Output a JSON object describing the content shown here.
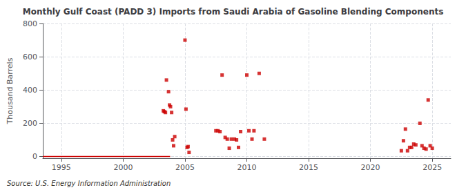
{
  "chart_data": {
    "type": "scatter",
    "title": "Monthly Gulf Coast (PADD 3) Imports from Saudi Arabia of Gasoline Blending Components",
    "ylabel": "Thousand Barrels",
    "source": "Source: U.S. Energy Information Administration",
    "color": "#cc0000",
    "grid": true,
    "xlim": [
      1993.5,
      2026.5
    ],
    "ylim": [
      -10,
      800
    ],
    "xticks": [
      1995,
      2000,
      2005,
      2010,
      2015,
      2020,
      2025
    ],
    "yticks": [
      0,
      200,
      400,
      600,
      800
    ],
    "series": [
      {
        "type": "line",
        "line_style": "solid",
        "x": [
          1993.5,
          2003.8
        ],
        "values": [
          0,
          0
        ]
      },
      {
        "type": "scatter",
        "marker": "square",
        "x": [
          2003.25,
          2003.33,
          2003.42,
          2003.5,
          2003.67,
          2003.75,
          2003.83,
          2003.92,
          2004.0,
          2004.08,
          2004.17,
          2005.0,
          2005.08,
          2005.17,
          2005.25,
          2005.33,
          2007.5,
          2007.67,
          2007.83,
          2008.0,
          2008.25,
          2008.42,
          2008.58,
          2008.75,
          2009.0,
          2009.17,
          2009.33,
          2009.5,
          2010.0,
          2010.17,
          2010.42,
          2010.58,
          2011.0,
          2011.42,
          2022.5,
          2022.67,
          2022.83,
          2023.0,
          2023.17,
          2023.33,
          2023.5,
          2023.67,
          2024.0,
          2024.17,
          2024.33,
          2024.5,
          2024.67,
          2024.83,
          2025.0
        ],
        "values": [
          275,
          270,
          265,
          460,
          390,
          310,
          300,
          265,
          100,
          65,
          120,
          700,
          285,
          55,
          60,
          25,
          155,
          155,
          150,
          490,
          115,
          105,
          50,
          105,
          105,
          100,
          55,
          150,
          490,
          155,
          105,
          155,
          500,
          105,
          35,
          95,
          165,
          35,
          55,
          55,
          75,
          70,
          200,
          65,
          50,
          45,
          340,
          65,
          50
        ]
      }
    ]
  }
}
